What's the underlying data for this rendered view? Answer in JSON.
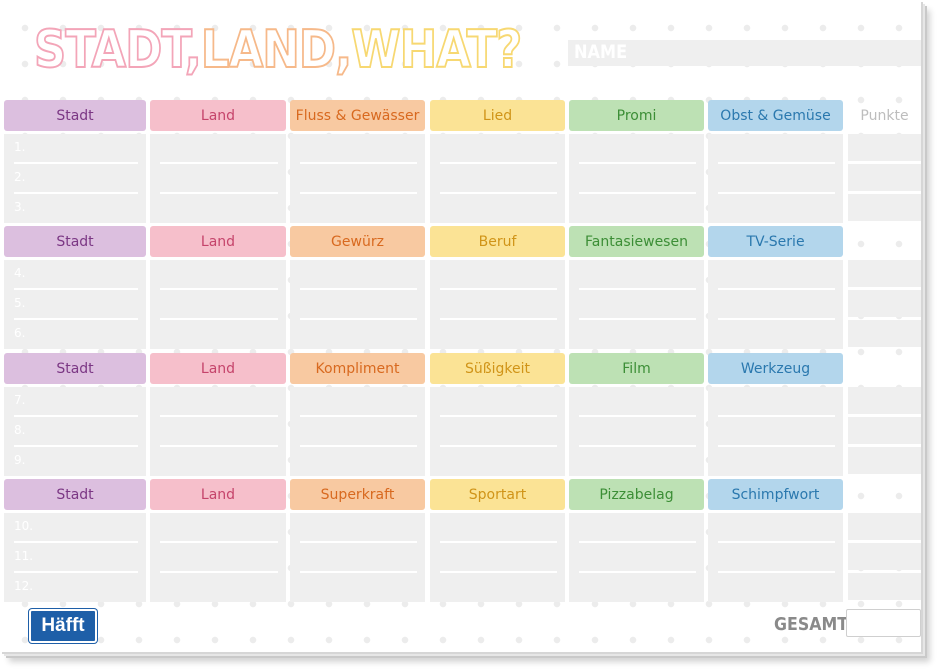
{
  "title": {
    "part1": "STADT,",
    "part2": "LAND,",
    "part3": "WHAT?"
  },
  "name_label": "NAME",
  "punkte_label": "Punkte",
  "colors": {
    "purple_bg": "#dcbfdf",
    "purple_fg": "#7b3784",
    "pink_bg": "#f6bfcb",
    "pink_fg": "#c5446b",
    "orange_bg": "#f8c9a1",
    "orange_fg": "#d8691f",
    "yellow_bg": "#fbe395",
    "yellow_fg": "#d09418",
    "green_bg": "#bde1b4",
    "green_fg": "#3c8e36",
    "blue_bg": "#b3d6ec",
    "blue_fg": "#2a78ae"
  },
  "rounds": [
    {
      "categories": [
        "Stadt",
        "Land",
        "Fluss & Gewässer",
        "Lied",
        "Promi",
        "Obst & Gemüse"
      ],
      "rows": [
        "1.",
        "2.",
        "3."
      ]
    },
    {
      "categories": [
        "Stadt",
        "Land",
        "Gewürz",
        "Beruf",
        "Fantasiewesen",
        "TV-Serie"
      ],
      "rows": [
        "4.",
        "5.",
        "6."
      ]
    },
    {
      "categories": [
        "Stadt",
        "Land",
        "Kompliment",
        "Süßigkeit",
        "Film",
        "Werkzeug"
      ],
      "rows": [
        "7.",
        "8.",
        "9."
      ]
    },
    {
      "categories": [
        "Stadt",
        "Land",
        "Superkraft",
        "Sportart",
        "Pizzabelag",
        "Schimpfwort"
      ],
      "rows": [
        "10.",
        "11.",
        "12."
      ]
    }
  ],
  "logo_text": "Häfft",
  "gesamt_label": "GESAMT:"
}
